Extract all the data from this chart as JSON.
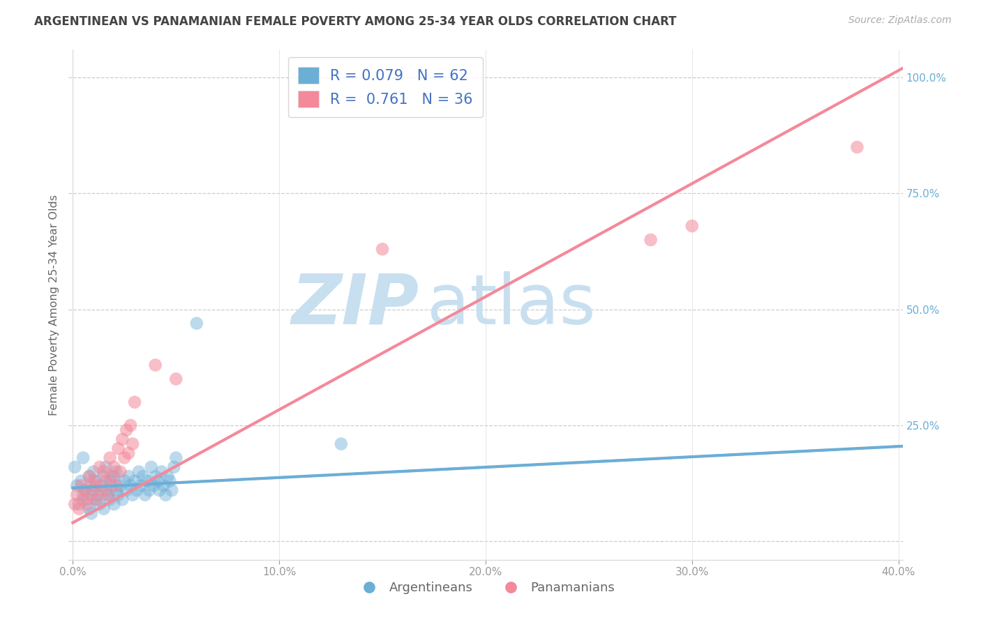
{
  "title": "ARGENTINEAN VS PANAMANIAN FEMALE POVERTY AMONG 25-34 YEAR OLDS CORRELATION CHART",
  "source": "Source: ZipAtlas.com",
  "ylabel": "Female Poverty Among 25-34 Year Olds",
  "xlim": [
    -0.002,
    0.402
  ],
  "ylim": [
    -0.04,
    1.06
  ],
  "xticks": [
    0.0,
    0.1,
    0.2,
    0.3,
    0.4
  ],
  "xtick_labels": [
    "0.0%",
    "10.0%",
    "20.0%",
    "30.0%",
    "40.0%"
  ],
  "yticks_right": [
    0.25,
    0.5,
    0.75,
    1.0
  ],
  "ytick_labels_right": [
    "25.0%",
    "50.0%",
    "75.0%",
    "100.0%"
  ],
  "arg_color": "#6baed6",
  "pan_color": "#f4899a",
  "arg_R": 0.079,
  "arg_N": 62,
  "pan_R": 0.761,
  "pan_N": 36,
  "legend_labels": [
    "Argentineans",
    "Panamanians"
  ],
  "watermark_zip": "ZIP",
  "watermark_atlas": "atlas",
  "watermark_color": "#c8dff0",
  "background_color": "#ffffff",
  "arg_scatter_x": [
    0.001,
    0.002,
    0.003,
    0.004,
    0.005,
    0.005,
    0.006,
    0.007,
    0.008,
    0.008,
    0.009,
    0.009,
    0.01,
    0.01,
    0.011,
    0.011,
    0.012,
    0.013,
    0.014,
    0.015,
    0.015,
    0.016,
    0.016,
    0.017,
    0.018,
    0.018,
    0.019,
    0.02,
    0.02,
    0.021,
    0.021,
    0.022,
    0.023,
    0.024,
    0.025,
    0.026,
    0.027,
    0.028,
    0.029,
    0.03,
    0.031,
    0.032,
    0.033,
    0.034,
    0.035,
    0.036,
    0.037,
    0.038,
    0.039,
    0.04,
    0.041,
    0.042,
    0.043,
    0.044,
    0.045,
    0.046,
    0.047,
    0.048,
    0.049,
    0.05,
    0.06,
    0.13
  ],
  "arg_scatter_y": [
    0.16,
    0.12,
    0.08,
    0.13,
    0.1,
    0.18,
    0.11,
    0.09,
    0.14,
    0.07,
    0.12,
    0.06,
    0.11,
    0.15,
    0.09,
    0.13,
    0.1,
    0.08,
    0.12,
    0.14,
    0.07,
    0.11,
    0.16,
    0.1,
    0.09,
    0.13,
    0.12,
    0.14,
    0.08,
    0.11,
    0.15,
    0.1,
    0.12,
    0.09,
    0.13,
    0.11,
    0.14,
    0.12,
    0.1,
    0.13,
    0.11,
    0.15,
    0.12,
    0.14,
    0.1,
    0.13,
    0.11,
    0.16,
    0.12,
    0.14,
    0.13,
    0.11,
    0.15,
    0.12,
    0.1,
    0.14,
    0.13,
    0.11,
    0.16,
    0.18,
    0.47,
    0.21
  ],
  "pan_scatter_x": [
    0.001,
    0.002,
    0.003,
    0.004,
    0.005,
    0.006,
    0.007,
    0.008,
    0.009,
    0.01,
    0.011,
    0.012,
    0.013,
    0.014,
    0.015,
    0.016,
    0.017,
    0.018,
    0.019,
    0.02,
    0.021,
    0.022,
    0.023,
    0.024,
    0.025,
    0.026,
    0.027,
    0.028,
    0.029,
    0.03,
    0.04,
    0.05,
    0.15,
    0.28,
    0.3,
    0.38
  ],
  "pan_scatter_y": [
    0.08,
    0.1,
    0.07,
    0.12,
    0.09,
    0.11,
    0.08,
    0.14,
    0.1,
    0.13,
    0.12,
    0.09,
    0.16,
    0.11,
    0.15,
    0.13,
    0.1,
    0.18,
    0.14,
    0.16,
    0.12,
    0.2,
    0.15,
    0.22,
    0.18,
    0.24,
    0.19,
    0.25,
    0.21,
    0.3,
    0.38,
    0.35,
    0.63,
    0.65,
    0.68,
    0.85
  ],
  "arg_trend_x": [
    0.0,
    0.402
  ],
  "arg_trend_y": [
    0.115,
    0.205
  ],
  "pan_trend_x": [
    0.0,
    0.402
  ],
  "pan_trend_y": [
    0.04,
    1.02
  ]
}
